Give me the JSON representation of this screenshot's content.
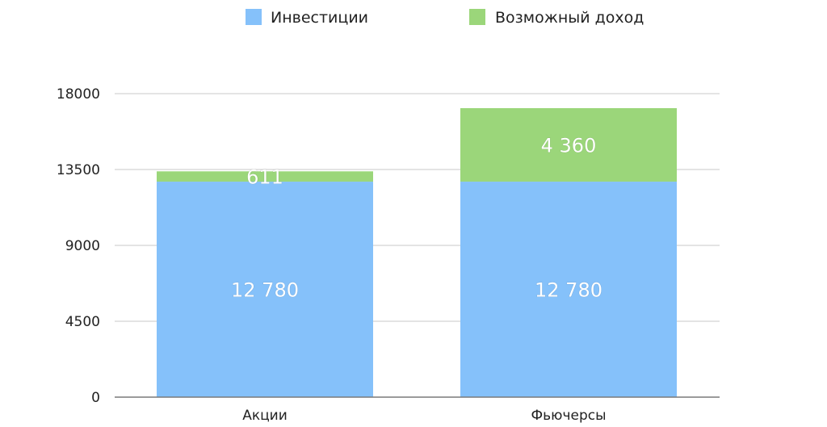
{
  "chart_data": {
    "type": "bar",
    "stacked": true,
    "categories": [
      "Акции",
      "Фьючерсы"
    ],
    "series": [
      {
        "name": "Инвестиции",
        "color": "#85C1FA",
        "values": [
          12780,
          12780
        ],
        "labels": [
          "12 780",
          "12 780"
        ]
      },
      {
        "name": "Возможный доход",
        "color": "#9BD67A",
        "values": [
          611,
          4360
        ],
        "labels": [
          "611",
          "4 360"
        ]
      }
    ],
    "yticks": [
      "0",
      "4500",
      "9000",
      "13500",
      "18000"
    ],
    "ylim": [
      0,
      18000
    ],
    "grid": true,
    "legend_position": "top-center"
  }
}
